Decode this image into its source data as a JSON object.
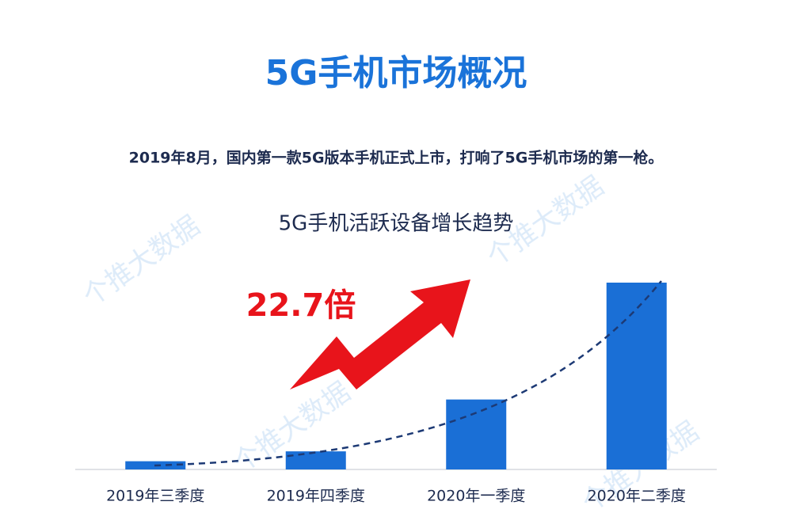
{
  "title": "5G手机市场概况",
  "subtitle": "2019年8月，国内第一款5G版本手机正式上市，打响了5G手机市场的第一枪。",
  "watermark": "个推大数据",
  "chart_data": {
    "type": "bar",
    "title": "5G手机活跃设备增长趋势",
    "annotation": "22.7倍",
    "categories": [
      "2019年三季度",
      "2019年四季度",
      "2020年一季度",
      "2020年二季度"
    ],
    "values": [
      1,
      2.2,
      8.5,
      22.7
    ],
    "color": "#1a6fd6"
  }
}
